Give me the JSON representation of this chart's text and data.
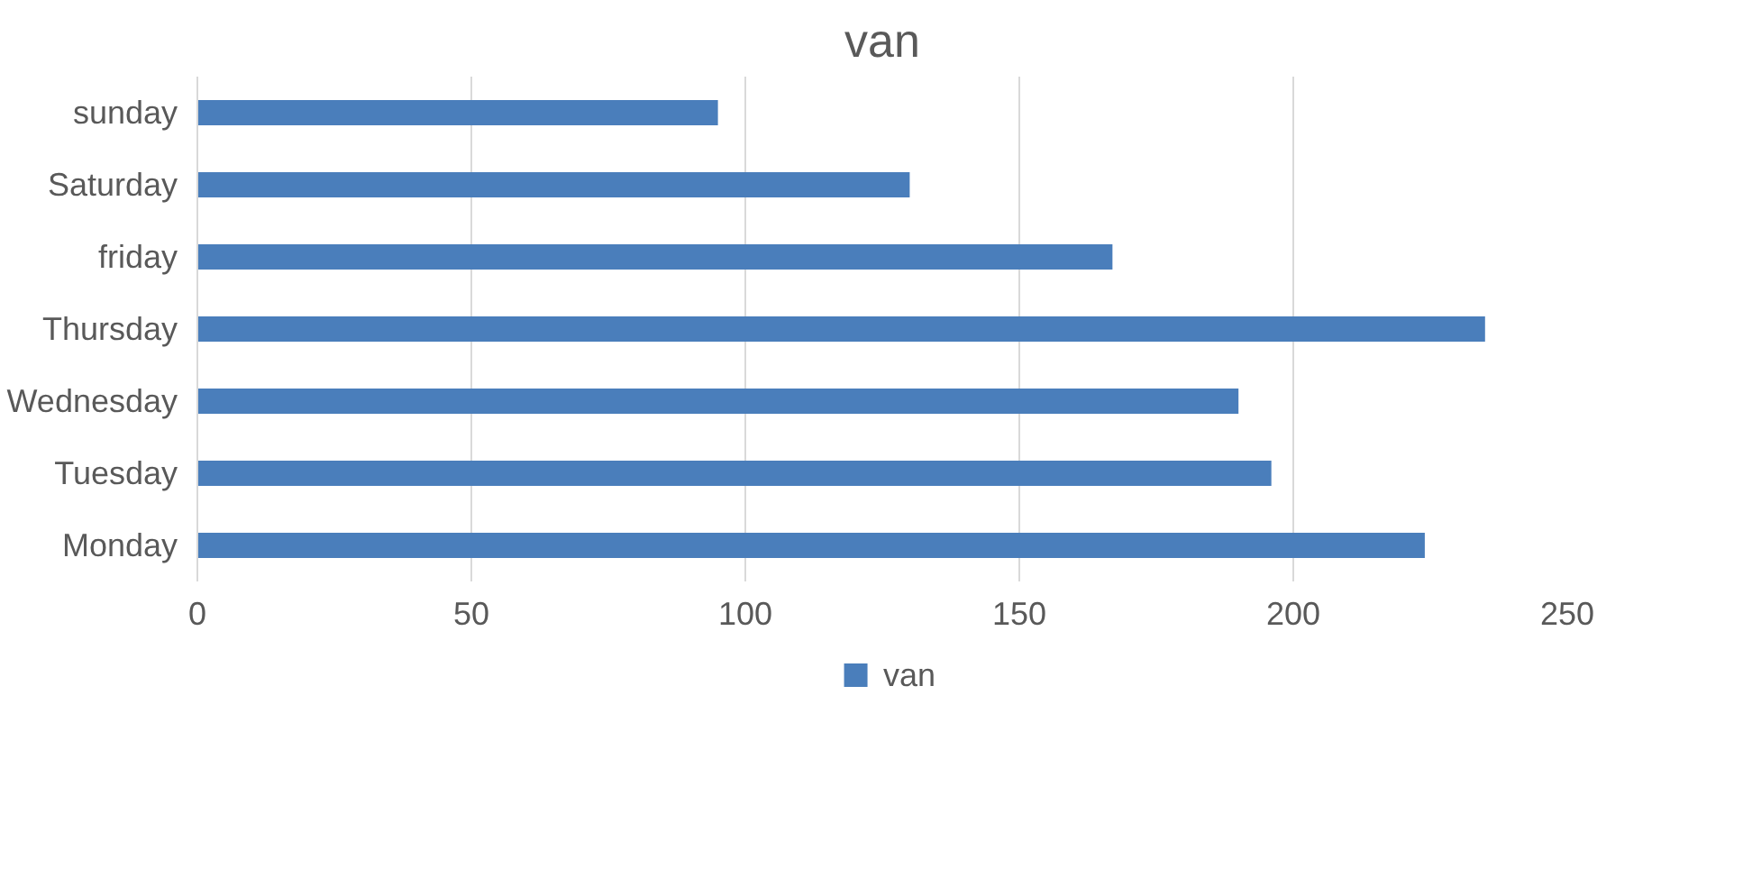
{
  "chart_data": {
    "type": "bar",
    "orientation": "horizontal",
    "title": "van",
    "categories": [
      "sunday",
      "Saturday",
      "friday",
      "Thursday",
      "Wednesday",
      "Tuesday",
      "Monday"
    ],
    "series": [
      {
        "name": "van",
        "color": "#4a7ebb",
        "values": [
          95,
          130,
          167,
          235,
          190,
          196,
          224
        ]
      }
    ],
    "xlim": [
      0,
      250
    ],
    "xticks": [
      0,
      50,
      100,
      150,
      200,
      250
    ],
    "grid": "x",
    "legend": "bottom"
  }
}
